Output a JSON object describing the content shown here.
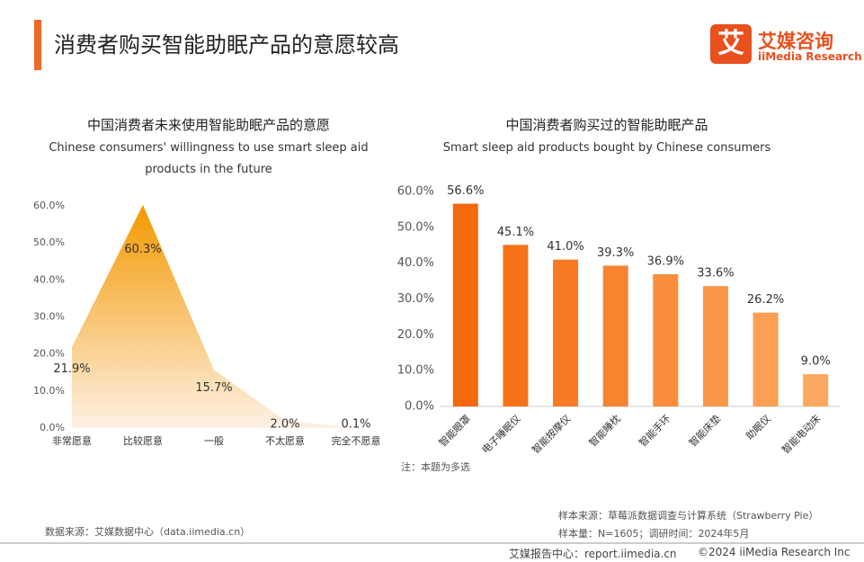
{
  "header": {
    "title": "消费者购买智能助眠产品的意愿较高",
    "logo_icon": "艾",
    "logo_name": "艾媒咨询",
    "logo_en": "iiMedia Research"
  },
  "chart_data": [
    {
      "type": "area",
      "title": "中国消费者未来使用智能助眠产品的意愿",
      "subtitle": "Chinese consumers' willingness to use smart sleep aid products in the future",
      "categories": [
        "非常愿意",
        "比较愿意",
        "一般",
        "不太愿意",
        "完全不愿意"
      ],
      "values": [
        21.9,
        60.3,
        15.7,
        2.0,
        0.1
      ],
      "value_labels": [
        "21.9%",
        "60.3%",
        "15.7%",
        "2.0%",
        "0.1%"
      ],
      "color": "#f39800",
      "ylim": [
        0,
        60
      ],
      "yticks": [
        {
          "value": 0,
          "label": "0.0%"
        },
        {
          "value": 10,
          "label": "10.0%"
        },
        {
          "value": 20,
          "label": "20.0%"
        },
        {
          "value": 30,
          "label": "30.0%"
        },
        {
          "value": 40,
          "label": "40.0%"
        },
        {
          "value": 50,
          "label": "50.0%"
        },
        {
          "value": 60,
          "label": "60.0%"
        }
      ],
      "grid": false
    },
    {
      "type": "bar",
      "title": "中国消费者购买过的智能助眠产品",
      "subtitle": "Smart sleep aid products bought by Chinese consumers",
      "categories": [
        "智能眼罩",
        "电子睡眠仪",
        "智能按摩仪",
        "智能睡枕",
        "智能手环",
        "智能床垫",
        "助眠仪",
        "智能电动床"
      ],
      "values": [
        56.6,
        45.1,
        41.0,
        39.3,
        36.9,
        33.6,
        26.2,
        9.0
      ],
      "value_labels": [
        "56.6%",
        "45.1%",
        "41.0%",
        "39.3%",
        "36.9%",
        "33.6%",
        "26.2%",
        "9.0%"
      ],
      "colors": [
        "#f4680e",
        "#f57219",
        "#f67b24",
        "#f7842f",
        "#f88d3b",
        "#f99647",
        "#fa9f53",
        "#fba860"
      ],
      "ylim": [
        0,
        60
      ],
      "yticks": [
        {
          "value": 0,
          "label": "0.0%"
        },
        {
          "value": 10,
          "label": "10.0%"
        },
        {
          "value": 20,
          "label": "20.0%"
        },
        {
          "value": 30,
          "label": "30.0%"
        },
        {
          "value": 40,
          "label": "40.0%"
        },
        {
          "value": 50,
          "label": "50.0%"
        },
        {
          "value": 60,
          "label": "60.0%"
        }
      ],
      "grid": false,
      "note": "注：本题为多选"
    }
  ],
  "footer": {
    "source_left": "数据来源：艾媒数据中心（data.iimedia.cn）",
    "sample_source": "样本来源：草莓派数据调查与计算系统（Strawberry Pie）",
    "sample_size": "样本量：N=1605；调研时间：2024年5月",
    "report_center": "艾媒报告中心：report.iimedia.cn",
    "copyright": "©2024  iiMedia Research Inc"
  }
}
